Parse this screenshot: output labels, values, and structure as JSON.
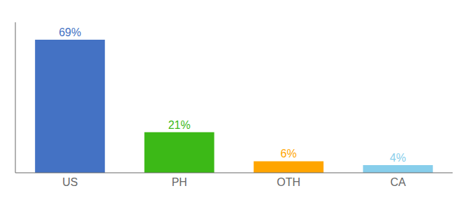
{
  "chart_data": {
    "type": "bar",
    "categories": [
      "US",
      "PH",
      "OTH",
      "CA"
    ],
    "values": [
      69,
      21,
      6,
      4
    ],
    "value_labels": [
      "69%",
      "21%",
      "6%",
      "4%"
    ],
    "colors": [
      "#4472C4",
      "#3CB917",
      "#FFA500",
      "#87CEEB"
    ],
    "ylim": [
      0,
      78
    ],
    "data_labels": true,
    "tick_labels": "x"
  }
}
